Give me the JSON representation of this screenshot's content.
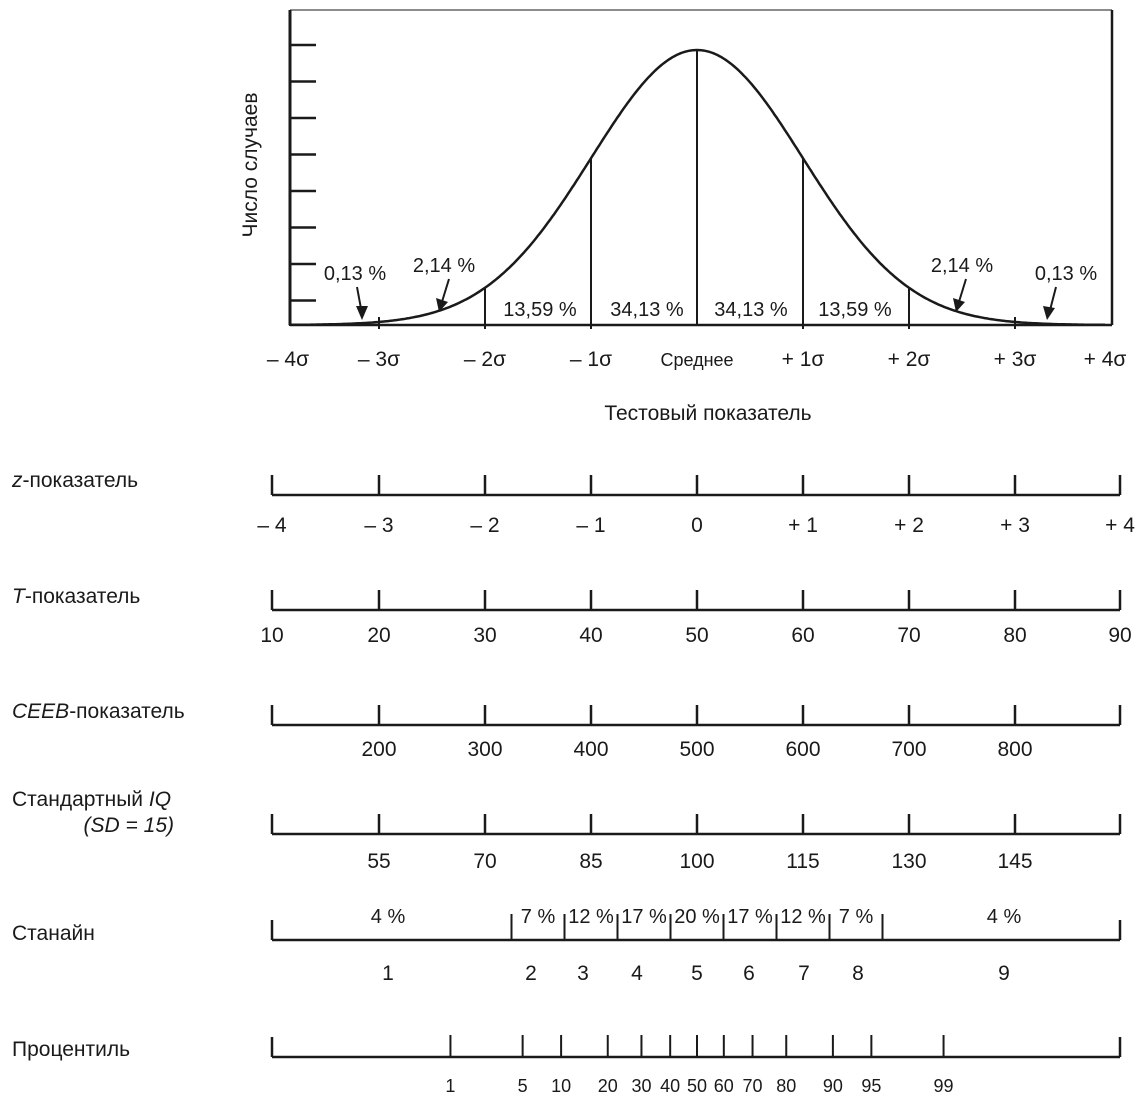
{
  "curve": {
    "y_axis_label": "Число случаев",
    "x_axis_label": "Тестовый показатель",
    "sigma_labels": [
      "– 4σ",
      "– 3σ",
      "– 2σ",
      "– 1σ",
      "Среднее",
      "+ 1σ",
      "+ 2σ",
      "+ 3σ",
      "+ 4σ"
    ],
    "area_labels": {
      "left_tail": "0,13 %",
      "left_2": "2,14 %",
      "left_band2": "13,59 %",
      "left_band1": "34,13 %",
      "right_band1": "34,13 %",
      "right_band2": "13,59 %",
      "right_2": "2,14 %",
      "right_tail": "0,13 %"
    }
  },
  "scales": {
    "z": {
      "label_prefix": "z",
      "label_suffix": "-показатель",
      "z_positions": [
        -4,
        -3,
        -2,
        -1,
        0,
        1,
        2,
        3,
        4
      ],
      "values": [
        "– 4",
        "– 3",
        "– 2",
        "– 1",
        "0",
        "+ 1",
        "+ 2",
        "+ 3",
        "+ 4"
      ]
    },
    "t": {
      "label_prefix": "T",
      "label_suffix": "-показатель",
      "z_positions": [
        -4,
        -3,
        -2,
        -1,
        0,
        1,
        2,
        3,
        4
      ],
      "values": [
        "10",
        "20",
        "30",
        "40",
        "50",
        "60",
        "70",
        "80",
        "90"
      ]
    },
    "ceeb": {
      "label_prefix": "CEEB",
      "label_suffix": "-показатель",
      "z_positions": [
        -3,
        -2,
        -1,
        0,
        1,
        2,
        3
      ],
      "values": [
        "200",
        "300",
        "400",
        "500",
        "600",
        "700",
        "800"
      ]
    },
    "iq": {
      "label_line1_prefix": "Стандартный ",
      "label_line1_italic": "IQ",
      "label_line2": "(SD = 15)",
      "z_positions": [
        -3,
        -2,
        -1,
        0,
        1,
        2,
        3
      ],
      "values": [
        "55",
        "70",
        "85",
        "100",
        "115",
        "130",
        "145"
      ]
    },
    "stanine": {
      "label": "Станайн",
      "boundaries_z": [
        -1.75,
        -1.25,
        -0.75,
        -0.25,
        0.25,
        0.75,
        1.25,
        1.75
      ],
      "percents": [
        "4 %",
        "7 %",
        "12 %",
        "17 %",
        "20 %",
        "17 %",
        "12 %",
        "7 %",
        "4 %"
      ],
      "values": [
        "1",
        "2",
        "3",
        "4",
        "5",
        "6",
        "7",
        "8",
        "9"
      ]
    },
    "percentile": {
      "label": "Процентиль",
      "values": [
        "1",
        "5",
        "10",
        "20",
        "30",
        "40",
        "50",
        "60",
        "70",
        "80",
        "90",
        "95",
        "99"
      ],
      "z_positions": [
        -2.326,
        -1.645,
        -1.282,
        -0.842,
        -0.524,
        -0.253,
        0,
        0.253,
        0.524,
        0.842,
        1.282,
        1.645,
        2.326
      ]
    }
  }
}
